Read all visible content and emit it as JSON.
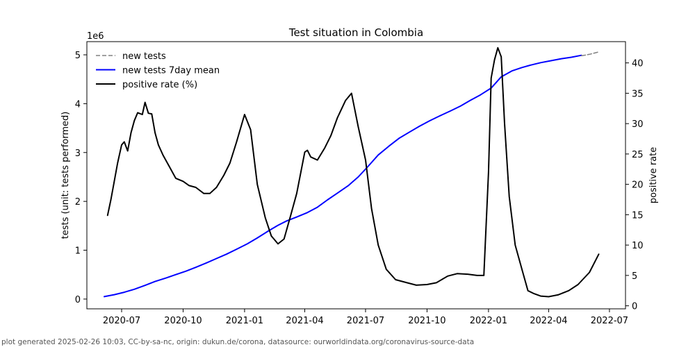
{
  "footer": "plot generated 2025-02-26 10:03, CC-by-sa-nc, origin: dukun.de/corona, datasource: ourworldindata.org/coronavirus-source-data",
  "chart_data": {
    "type": "line",
    "title": "Test situation in Colombia",
    "ylabel": "tests (unit: tests performed)",
    "y2label": "positive rate",
    "y_offset_label": "1e6",
    "ylim": [
      -0.2,
      5.27
    ],
    "y2lim": [
      -0.5,
      43.5
    ],
    "xlim": [
      "2020-05-10",
      "2022-07-25"
    ],
    "x_ticks": [
      "2020-07",
      "2020-10",
      "2021-01",
      "2021-04",
      "2021-07",
      "2021-10",
      "2022-01",
      "2022-04",
      "2022-07"
    ],
    "y_ticks": [
      "0",
      "1",
      "2",
      "3",
      "4",
      "5"
    ],
    "y2_ticks": [
      "0",
      "5",
      "10",
      "15",
      "20",
      "25",
      "30",
      "35",
      "40"
    ],
    "legend_position": "top-left",
    "grid": false,
    "series": [
      {
        "name": "new tests",
        "color": "#808080",
        "style": "dashed",
        "axis": "left",
        "x": [
          "2022-05-20",
          "2022-06-01",
          "2022-06-15"
        ],
        "y": [
          4.98,
          5.01,
          5.06
        ]
      },
      {
        "name": "new tests 7day mean",
        "color": "#0000ff",
        "style": "solid",
        "axis": "left",
        "x": [
          "2020-06-05",
          "2020-06-20",
          "2020-07-05",
          "2020-07-20",
          "2020-08-05",
          "2020-08-20",
          "2020-09-05",
          "2020-09-20",
          "2020-10-05",
          "2020-10-20",
          "2020-11-05",
          "2020-11-20",
          "2020-12-05",
          "2020-12-20",
          "2021-01-05",
          "2021-01-20",
          "2021-02-05",
          "2021-02-20",
          "2021-03-05",
          "2021-03-20",
          "2021-04-05",
          "2021-04-20",
          "2021-05-05",
          "2021-05-20",
          "2021-06-05",
          "2021-06-20",
          "2021-07-05",
          "2021-07-20",
          "2021-08-05",
          "2021-08-20",
          "2021-09-05",
          "2021-09-20",
          "2021-10-05",
          "2021-10-20",
          "2021-11-05",
          "2021-11-20",
          "2021-12-05",
          "2021-12-20",
          "2022-01-05",
          "2022-01-20",
          "2022-02-05",
          "2022-02-20",
          "2022-03-05",
          "2022-03-20",
          "2022-04-05",
          "2022-04-20",
          "2022-05-05",
          "2022-05-20"
        ],
        "y": [
          0.05,
          0.09,
          0.14,
          0.2,
          0.28,
          0.36,
          0.43,
          0.5,
          0.57,
          0.65,
          0.74,
          0.83,
          0.92,
          1.02,
          1.13,
          1.25,
          1.39,
          1.51,
          1.6,
          1.68,
          1.77,
          1.88,
          2.03,
          2.17,
          2.32,
          2.5,
          2.72,
          2.95,
          3.13,
          3.29,
          3.42,
          3.54,
          3.65,
          3.75,
          3.85,
          3.95,
          4.07,
          4.18,
          4.32,
          4.55,
          4.67,
          4.74,
          4.79,
          4.84,
          4.88,
          4.92,
          4.95,
          4.99
        ]
      },
      {
        "name": "positive rate (%)",
        "color": "#000000",
        "style": "solid",
        "axis": "right",
        "x": [
          "2020-06-10",
          "2020-06-15",
          "2020-06-20",
          "2020-06-25",
          "2020-07-01",
          "2020-07-05",
          "2020-07-10",
          "2020-07-15",
          "2020-07-20",
          "2020-07-25",
          "2020-08-01",
          "2020-08-05",
          "2020-08-10",
          "2020-08-15",
          "2020-08-20",
          "2020-08-25",
          "2020-09-01",
          "2020-09-10",
          "2020-09-20",
          "2020-10-01",
          "2020-10-10",
          "2020-10-20",
          "2020-11-01",
          "2020-11-10",
          "2020-11-20",
          "2020-12-01",
          "2020-12-10",
          "2020-12-20",
          "2021-01-01",
          "2021-01-10",
          "2021-01-20",
          "2021-02-01",
          "2021-02-10",
          "2021-02-20",
          "2021-03-01",
          "2021-03-10",
          "2021-03-20",
          "2021-04-01",
          "2021-04-05",
          "2021-04-10",
          "2021-04-20",
          "2021-05-01",
          "2021-05-10",
          "2021-05-20",
          "2021-06-01",
          "2021-06-10",
          "2021-06-20",
          "2021-07-01",
          "2021-07-10",
          "2021-07-20",
          "2021-08-01",
          "2021-08-15",
          "2021-09-01",
          "2021-09-15",
          "2021-10-01",
          "2021-10-15",
          "2021-11-01",
          "2021-11-15",
          "2021-12-01",
          "2021-12-15",
          "2021-12-25",
          "2022-01-01",
          "2022-01-05",
          "2022-01-10",
          "2022-01-15",
          "2022-01-20",
          "2022-01-25",
          "2022-02-01",
          "2022-02-10",
          "2022-02-20",
          "2022-03-01",
          "2022-03-10",
          "2022-03-20",
          "2022-04-01",
          "2022-04-15",
          "2022-05-01",
          "2022-05-15",
          "2022-06-01",
          "2022-06-15"
        ],
        "y": [
          14.9,
          17.5,
          20.5,
          23.5,
          26.5,
          27.0,
          25.5,
          28.5,
          30.5,
          31.8,
          31.5,
          33.5,
          31.7,
          31.6,
          28.5,
          26.5,
          24.8,
          23.0,
          21.0,
          20.5,
          19.8,
          19.5,
          18.5,
          18.5,
          19.5,
          21.5,
          23.5,
          27.0,
          31.5,
          29.0,
          20.0,
          14.5,
          11.5,
          10.2,
          11.0,
          14.5,
          18.5,
          25.3,
          25.6,
          24.5,
          24.0,
          26.0,
          28.0,
          31.0,
          33.8,
          35.0,
          29.5,
          24.0,
          16.0,
          10.0,
          6.0,
          4.3,
          3.8,
          3.4,
          3.5,
          3.8,
          4.9,
          5.3,
          5.2,
          5.0,
          5.0,
          22.0,
          37.5,
          40.5,
          42.5,
          41.0,
          30.0,
          18.0,
          10.0,
          6.0,
          2.5,
          2.0,
          1.6,
          1.5,
          1.8,
          2.5,
          3.5,
          5.5,
          8.5
        ]
      }
    ]
  }
}
